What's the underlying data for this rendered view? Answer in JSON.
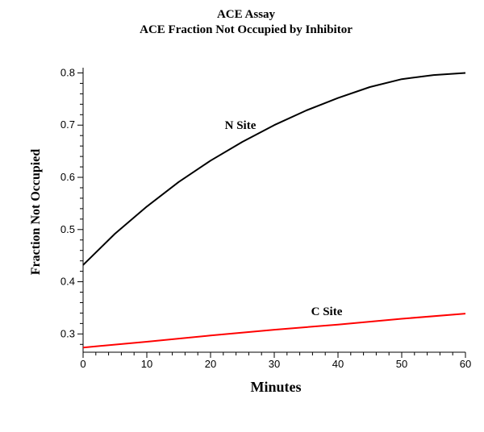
{
  "chart_data": {
    "type": "line",
    "title": "ACE Assay",
    "subtitle": "ACE Fraction Not Occupied by Inhibitor",
    "xlabel": "Minutes",
    "ylabel": "Fraction Not Occupied",
    "xlim": [
      0,
      60
    ],
    "ylim": [
      0.265,
      0.81
    ],
    "xticks": [
      0,
      10,
      20,
      30,
      40,
      50,
      60
    ],
    "yticks": [
      0.3,
      0.4,
      0.5,
      0.6,
      0.7,
      0.8
    ],
    "grid": false,
    "legend": "none",
    "series": [
      {
        "name": "N Site",
        "color": "#000000",
        "x": [
          0,
          5,
          10,
          15,
          20,
          25,
          30,
          35,
          40,
          45,
          50,
          55,
          60
        ],
        "y": [
          0.432,
          0.492,
          0.544,
          0.591,
          0.632,
          0.668,
          0.7,
          0.728,
          0.752,
          0.773,
          0.788,
          0.796,
          0.8
        ]
      },
      {
        "name": "C Site",
        "color": "#ff0000",
        "x": [
          0,
          10,
          20,
          30,
          40,
          50,
          60
        ],
        "y": [
          0.274,
          0.285,
          0.297,
          0.308,
          0.318,
          0.329,
          0.339
        ]
      }
    ]
  }
}
